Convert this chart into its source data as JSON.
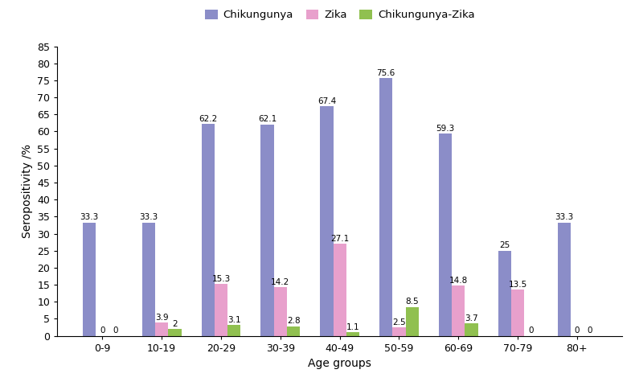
{
  "categories": [
    "0-9",
    "10-19",
    "20-29",
    "30-39",
    "40-49",
    "50-59",
    "60-69",
    "70-79",
    "80+"
  ],
  "chikungunya": [
    33.3,
    33.3,
    62.2,
    62.1,
    67.4,
    75.6,
    59.3,
    25.0,
    33.3
  ],
  "zika": [
    0.0,
    3.9,
    15.3,
    14.2,
    27.1,
    2.5,
    14.8,
    13.5,
    0.0
  ],
  "chikungunya_zika": [
    0.0,
    2.0,
    3.1,
    2.8,
    1.1,
    8.5,
    3.7,
    0.0,
    0.0
  ],
  "chikungunya_color": "#8B8DC8",
  "zika_color": "#E8A0CC",
  "chikungunya_zika_color": "#90C050",
  "bar_width": 0.22,
  "ylim": [
    0,
    85
  ],
  "yticks": [
    0,
    5,
    10,
    15,
    20,
    25,
    30,
    35,
    40,
    45,
    50,
    55,
    60,
    65,
    70,
    75,
    80,
    85
  ],
  "xlabel": "Age groups",
  "ylabel": "Seropositivity /%",
  "legend_labels": [
    "Chikungunya",
    "Zika",
    "Chikungunya-Zika"
  ],
  "label_fontsize": 10,
  "tick_fontsize": 9,
  "legend_fontsize": 9.5,
  "value_fontsize": 7.5
}
